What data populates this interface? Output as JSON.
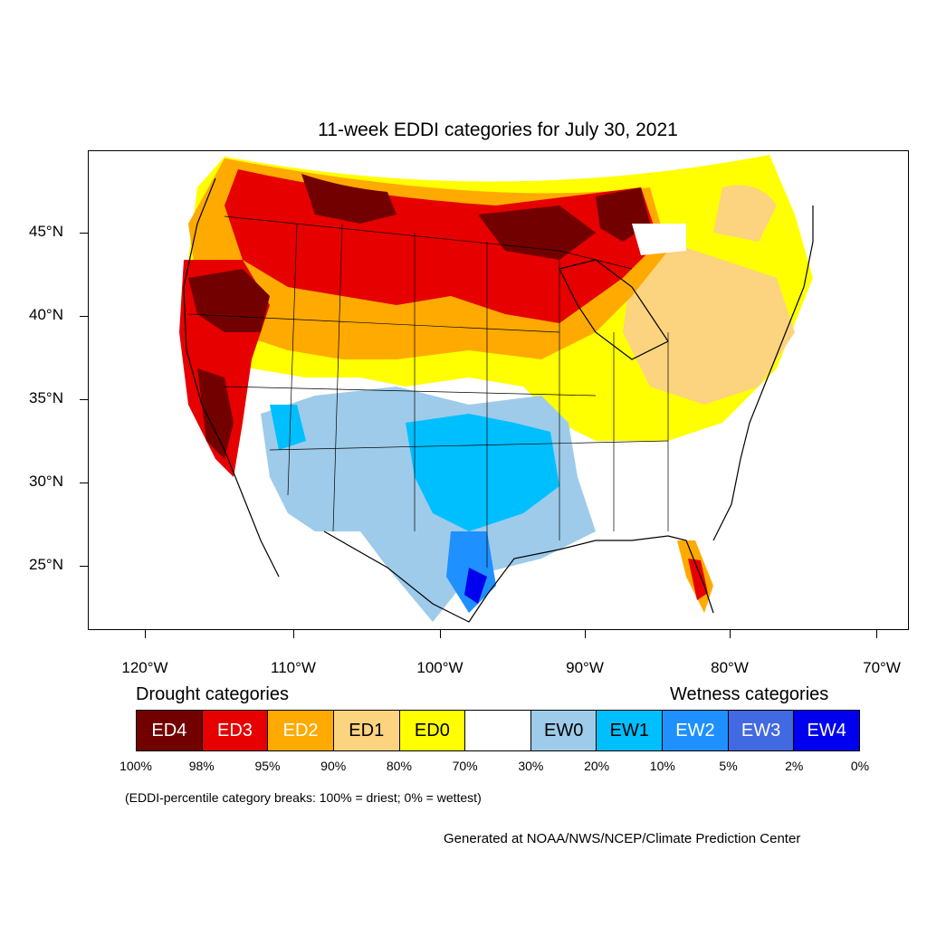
{
  "title": "11-week EDDI categories for July 30, 2021",
  "y_ticks": [
    "45°N",
    "40°N",
    "35°N",
    "30°N",
    "25°N"
  ],
  "x_ticks": [
    "120°W",
    "110°W",
    "100°W",
    "90°W",
    "80°W",
    "70°W"
  ],
  "legend": {
    "drought_heading": "Drought categories",
    "wetness_heading": "Wetness categories",
    "categories": [
      {
        "label": "ED4",
        "color": "#730000",
        "text_color": "#ffffff"
      },
      {
        "label": "ED3",
        "color": "#e60000",
        "text_color": "#ffffff"
      },
      {
        "label": "ED2",
        "color": "#ffaa00",
        "text_color": "#ffffff"
      },
      {
        "label": "ED1",
        "color": "#fcd37f",
        "text_color": "#000000"
      },
      {
        "label": "ED0",
        "color": "#ffff00",
        "text_color": "#000000"
      },
      {
        "label": "",
        "color": "#ffffff",
        "text_color": "#000000"
      },
      {
        "label": "EW0",
        "color": "#9ecbea",
        "text_color": "#000000"
      },
      {
        "label": "EW1",
        "color": "#00bfff",
        "text_color": "#000000"
      },
      {
        "label": "EW2",
        "color": "#1e90ff",
        "text_color": "#ffffff"
      },
      {
        "label": "EW3",
        "color": "#4169e1",
        "text_color": "#ffffff"
      },
      {
        "label": "EW4",
        "color": "#0000ee",
        "text_color": "#ffffff"
      }
    ],
    "percentiles": [
      "100%",
      "98%",
      "95%",
      "90%",
      "80%",
      "70%",
      "30%",
      "20%",
      "10%",
      "5%",
      "2%",
      "0%"
    ]
  },
  "note": "(EDDI-percentile category breaks: 100% = driest; 0% = wettest)",
  "credit": "Generated at NOAA/NWS/NCEP/Climate Prediction Center"
}
